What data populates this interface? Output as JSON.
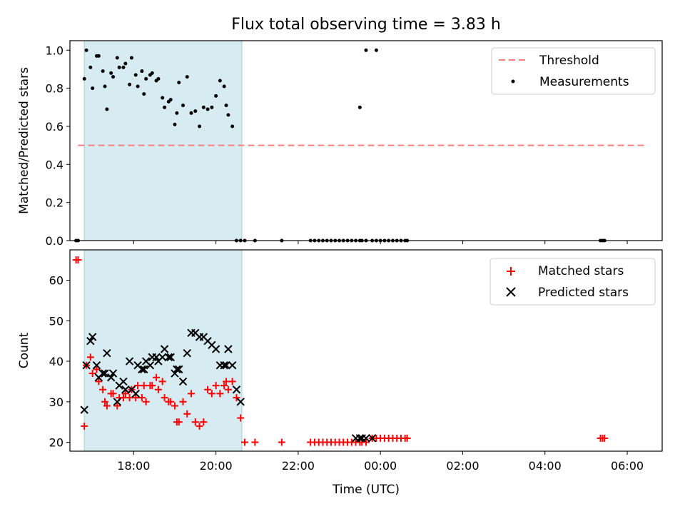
{
  "chart_data": [
    {
      "type": "scatter",
      "title": "Flux total observing time = 3.83 h",
      "xlabel": "",
      "ylabel": "Matched/Predicted stars",
      "ylim": [
        0.0,
        1.05
      ],
      "xlim_hours": [
        16.45,
        30.85
      ],
      "yticks": [
        0.0,
        0.2,
        0.4,
        0.6,
        0.8,
        1.0
      ],
      "ytick_labels": [
        "0.0",
        "0.2",
        "0.4",
        "0.6",
        "0.8",
        "1.0"
      ],
      "shaded_interval_hours": [
        16.8,
        20.63
      ],
      "threshold": {
        "label": "Threshold",
        "value": 0.5,
        "x_start": 16.65,
        "x_end": 30.5,
        "color": "#ff7f7f"
      },
      "legend": {
        "position": "top-right",
        "entries": [
          "Threshold",
          "Measurements"
        ]
      },
      "series": [
        {
          "name": "Measurements",
          "color": "#000000",
          "x": [
            16.6,
            16.65,
            16.8,
            16.85,
            16.95,
            17.0,
            17.1,
            17.15,
            17.25,
            17.3,
            17.35,
            17.45,
            17.5,
            17.6,
            17.65,
            17.75,
            17.8,
            17.9,
            17.95,
            18.05,
            18.1,
            18.2,
            18.25,
            18.3,
            18.4,
            18.45,
            18.55,
            18.6,
            18.7,
            18.75,
            18.85,
            18.9,
            19.0,
            19.05,
            19.1,
            19.2,
            19.3,
            19.4,
            19.5,
            19.6,
            19.7,
            19.8,
            19.9,
            20.0,
            20.1,
            20.2,
            20.25,
            20.3,
            20.4,
            20.5,
            20.6,
            20.7,
            20.95,
            21.6,
            22.3,
            22.4,
            22.5,
            22.6,
            22.7,
            22.8,
            22.9,
            23.0,
            23.1,
            23.2,
            23.3,
            23.4,
            23.5,
            23.55,
            23.65,
            23.8,
            23.9,
            24.0,
            24.1,
            24.2,
            24.3,
            24.4,
            24.5,
            24.6,
            24.65,
            29.35,
            29.4,
            29.45
          ],
          "y": [
            0,
            0,
            0.85,
            1.0,
            0.91,
            0.8,
            0.97,
            0.97,
            0.89,
            0.81,
            0.69,
            0.88,
            0.86,
            0.96,
            0.91,
            0.91,
            0.93,
            0.82,
            0.96,
            0.87,
            0.81,
            0.89,
            0.77,
            0.85,
            0.87,
            0.88,
            0.84,
            0.85,
            0.75,
            0.7,
            0.73,
            0.74,
            0.61,
            0.67,
            0.83,
            0.71,
            0.86,
            0.67,
            0.68,
            0.6,
            0.7,
            0.69,
            0.7,
            0.76,
            0.84,
            0.81,
            0.71,
            0.66,
            0.6,
            0,
            0,
            0,
            0,
            0,
            0,
            0,
            0,
            0,
            0,
            0,
            0,
            0,
            0,
            0,
            0,
            0,
            0,
            0,
            0,
            0,
            0,
            0,
            0,
            0,
            0,
            0,
            0,
            0,
            0,
            0,
            0,
            0
          ]
        }
      ],
      "outliers": {
        "x": [
          23.5,
          23.65,
          23.9
        ],
        "y": [
          0.7,
          1.0,
          1.0
        ]
      }
    },
    {
      "type": "scatter",
      "xlabel": "Time (UTC)",
      "ylabel": "Count",
      "ylim": [
        17.8,
        67.5
      ],
      "xlim_hours": [
        16.45,
        30.85
      ],
      "yticks": [
        20,
        30,
        40,
        50,
        60
      ],
      "ytick_labels": [
        "20",
        "30",
        "40",
        "50",
        "60"
      ],
      "xticks_hours": [
        18,
        20,
        22,
        24,
        26,
        28,
        30
      ],
      "xtick_labels": [
        "18:00",
        "20:00",
        "22:00",
        "00:00",
        "02:00",
        "04:00",
        "06:00"
      ],
      "shaded_interval_hours": [
        16.8,
        20.63
      ],
      "legend": {
        "position": "top-right",
        "entries": [
          "Matched stars",
          "Predicted stars"
        ]
      },
      "series": [
        {
          "name": "Matched stars",
          "color": "#ff0000",
          "marker": "plus",
          "x": [
            16.6,
            16.65,
            16.8,
            16.85,
            16.95,
            17.0,
            17.1,
            17.15,
            17.25,
            17.3,
            17.35,
            17.45,
            17.5,
            17.6,
            17.65,
            17.75,
            17.8,
            17.9,
            17.95,
            18.05,
            18.1,
            18.2,
            18.25,
            18.3,
            18.4,
            18.45,
            18.55,
            18.6,
            18.7,
            18.75,
            18.85,
            18.9,
            19.0,
            19.05,
            19.1,
            19.2,
            19.3,
            19.4,
            19.5,
            19.6,
            19.7,
            19.8,
            19.9,
            20.0,
            20.1,
            20.2,
            20.25,
            20.3,
            20.4,
            20.5,
            20.6,
            20.7,
            20.95,
            21.6,
            22.3,
            22.4,
            22.5,
            22.6,
            22.7,
            22.8,
            22.9,
            23.0,
            23.1,
            23.2,
            23.3,
            23.4,
            23.5,
            23.55,
            23.65,
            23.8,
            23.9,
            24.0,
            24.1,
            24.2,
            24.3,
            24.4,
            24.5,
            24.6,
            24.65,
            29.35,
            29.4,
            29.45
          ],
          "y": [
            65,
            65,
            24,
            39,
            41,
            37,
            38,
            35,
            33,
            30,
            29,
            32,
            32,
            29,
            31,
            31,
            32,
            31,
            33,
            31,
            34,
            31,
            34,
            30,
            34,
            34,
            36,
            33,
            35,
            31,
            30,
            30,
            29,
            25,
            25,
            30,
            27,
            32,
            25,
            24,
            25,
            33,
            32,
            34,
            32,
            34,
            35,
            33,
            35,
            31,
            26,
            20,
            20,
            20,
            20,
            20,
            20,
            20,
            20,
            20,
            20,
            20,
            20,
            20,
            20,
            20,
            20,
            20,
            20,
            21,
            21,
            21,
            21,
            21,
            21,
            21,
            21,
            21,
            21,
            21,
            21,
            21
          ]
        },
        {
          "name": "Predicted stars",
          "color": "#000000",
          "marker": "x",
          "x": [
            16.8,
            16.85,
            16.95,
            17.0,
            17.1,
            17.15,
            17.25,
            17.3,
            17.35,
            17.45,
            17.5,
            17.6,
            17.65,
            17.75,
            17.8,
            17.9,
            17.95,
            18.05,
            18.1,
            18.2,
            18.25,
            18.3,
            18.4,
            18.45,
            18.55,
            18.6,
            18.7,
            18.75,
            18.85,
            18.9,
            19.0,
            19.05,
            19.1,
            19.2,
            19.3,
            19.4,
            19.5,
            19.6,
            19.7,
            19.8,
            19.9,
            20.0,
            20.1,
            20.2,
            20.25,
            20.3,
            20.4,
            20.5,
            20.6,
            23.4,
            23.5,
            23.55,
            23.65,
            23.8
          ],
          "y": [
            28,
            39,
            45,
            46,
            39,
            36,
            37,
            37,
            42,
            36,
            37,
            30,
            34,
            35,
            33,
            40,
            33,
            32,
            39,
            38,
            38,
            40,
            39,
            41,
            41,
            40,
            41,
            43,
            41,
            41,
            37,
            38,
            38,
            35,
            42,
            47,
            47,
            46,
            46,
            45,
            44,
            43,
            39,
            39,
            39,
            43,
            39,
            33,
            30,
            21,
            21,
            21,
            21,
            21
          ]
        }
      ]
    }
  ]
}
